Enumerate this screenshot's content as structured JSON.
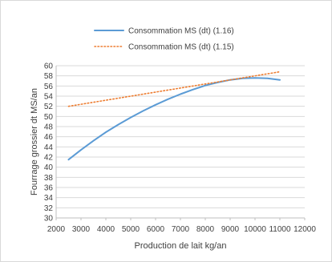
{
  "chart_data": {
    "type": "line",
    "title": "",
    "xlabel": "Production de lait kg/an",
    "ylabel": "Fourrage grossier dt MS/an",
    "xlim": [
      2000,
      12000
    ],
    "ylim": [
      30,
      60
    ],
    "x_ticks": [
      "2000",
      "3000",
      "4000",
      "5000",
      "6000",
      "7000",
      "8000",
      "9000",
      "10000",
      "11000",
      "12000"
    ],
    "y_ticks": [
      "30",
      "32",
      "34",
      "36",
      "38",
      "40",
      "42",
      "44",
      "46",
      "48",
      "50",
      "52",
      "54",
      "56",
      "58",
      "60"
    ],
    "grid": "horizontal",
    "legend_position": "top",
    "series": [
      {
        "name": "Consommation MS (dt) (1.16)",
        "style": "solid",
        "color": "#5B9BD5",
        "x": [
          2500,
          3000,
          3500,
          4000,
          4500,
          5000,
          5500,
          6000,
          6500,
          7000,
          7500,
          8000,
          8500,
          9000,
          9500,
          10000,
          10500,
          11000
        ],
        "y": [
          41.5,
          43.4,
          45.2,
          46.9,
          48.4,
          49.8,
          51.1,
          52.3,
          53.4,
          54.4,
          55.3,
          56.1,
          56.7,
          57.2,
          57.5,
          57.6,
          57.5,
          57.2
        ]
      },
      {
        "name": "Consommation MS (dt) (1.15)",
        "style": "dotted",
        "color": "#ED7D31",
        "x": [
          2500,
          11000
        ],
        "y": [
          52.0,
          58.8
        ]
      }
    ]
  }
}
